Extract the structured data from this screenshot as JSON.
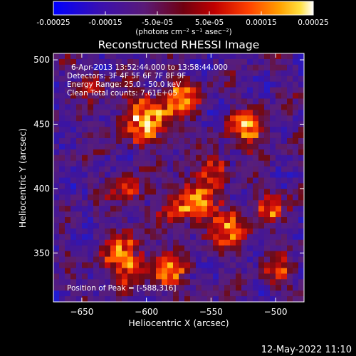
{
  "colorbar": {
    "ticks": [
      "-0.00025",
      "-0.00015",
      "-5.0e-05",
      "5.0e-05",
      "0.00015",
      "0.00025"
    ],
    "tick_values": [
      -0.00025,
      -0.00015,
      -5e-05,
      5e-05,
      0.00015,
      0.00025
    ],
    "range": [
      -0.00025,
      0.00025
    ],
    "units_label": "(photons cm⁻² s⁻¹ asec⁻²)"
  },
  "footer": {
    "timestamp": "12-May-2022 11:10"
  },
  "chart_data": {
    "type": "heatmap",
    "title": "Reconstructed RHESSI Image",
    "xlabel": "Heliocentric X (arcsec)",
    "ylabel": "Heliocentric Y (arcsec)",
    "xlim": [
      -672,
      -478
    ],
    "ylim": [
      312,
      505
    ],
    "xticks": [
      -650,
      -600,
      -550,
      -500
    ],
    "xtick_labels": [
      "−650",
      "−600",
      "−550",
      "−500"
    ],
    "yticks": [
      350,
      400,
      450,
      500
    ],
    "ytick_labels": [
      "350",
      "400",
      "450",
      "500"
    ],
    "annotations": [
      "6-Apr-2013 13:52:44.000 to 13:58:44.000",
      "Detectors: 3F 4F 5F 6F 7F 8F 9F",
      "Energy Range: 25.0 - 50.0 keV",
      "Clean    Total counts: 7.61E+05"
    ],
    "peak_label": "Position of Peak = [-588,316]",
    "peak": {
      "x": -588,
      "y": 316
    },
    "colormap": [
      "#0000ff",
      "#3a0aa8",
      "#5a1a7a",
      "#8a1020",
      "#d01010",
      "#ff7000",
      "#ffd000",
      "#ffffff"
    ]
  }
}
